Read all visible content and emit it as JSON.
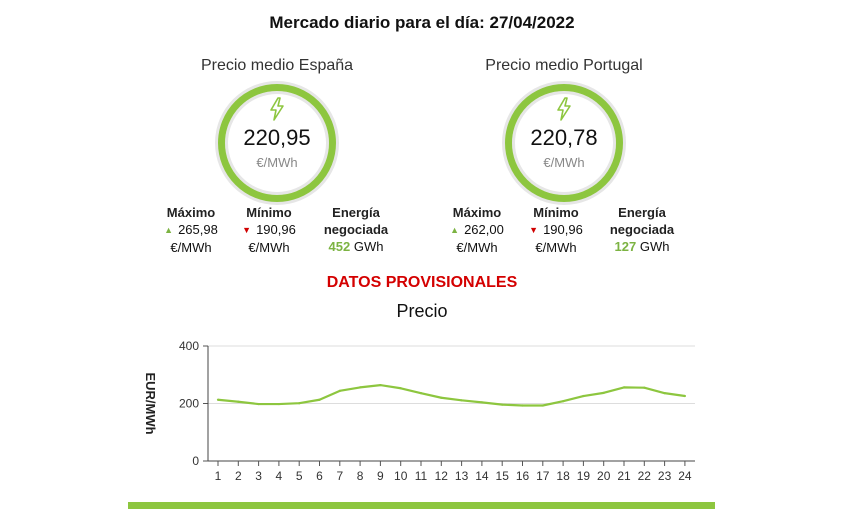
{
  "header": {
    "title": "Mercado diario para el día: 27/04/2022"
  },
  "spain": {
    "label": "Precio medio España",
    "price": "220,95",
    "unit": "€/MWh",
    "max_label": "Máximo",
    "max_value": "265,98",
    "max_unit": "€/MWh",
    "min_label": "Mínimo",
    "min_value": "190,96",
    "min_unit": "€/MWh",
    "energy_label_1": "Energía",
    "energy_label_2": "negociada",
    "energy_value": "452",
    "energy_unit": "GWh"
  },
  "portugal": {
    "label": "Precio medio Portugal",
    "price": "220,78",
    "unit": "€/MWh",
    "max_label": "Máximo",
    "max_value": "262,00",
    "max_unit": "€/MWh",
    "min_label": "Mínimo",
    "min_value": "190,96",
    "min_unit": "€/MWh",
    "energy_label_1": "Energía",
    "energy_label_2": "negociada",
    "energy_value": "127",
    "energy_unit": "GWh"
  },
  "notice": "DATOS PROVISIONALES",
  "colors": {
    "accent": "#8dc63f",
    "up": "#7cb342",
    "down": "#d00000",
    "notice": "#d40000"
  },
  "icons": {
    "gauge": "lightning-bolt-icon",
    "max": "triangle-up-icon",
    "min": "triangle-down-icon"
  },
  "chart_data": {
    "type": "line",
    "title": "Precio",
    "xlabel": "",
    "ylabel": "EUR/MWh",
    "categories": [
      "1",
      "2",
      "3",
      "4",
      "5",
      "6",
      "7",
      "8",
      "9",
      "10",
      "11",
      "12",
      "13",
      "14",
      "15",
      "16",
      "17",
      "18",
      "19",
      "20",
      "21",
      "22",
      "23",
      "24"
    ],
    "series": [
      {
        "values": [
          213,
          206,
          198,
          198,
          201,
          213,
          244,
          256,
          264,
          253,
          236,
          220,
          211,
          204,
          196,
          193,
          193,
          208,
          226,
          237,
          256,
          255,
          236,
          226
        ]
      }
    ],
    "ylim": [
      0,
      400
    ],
    "yticks": [
      0,
      200,
      400
    ],
    "grid": true,
    "legend": "none"
  }
}
